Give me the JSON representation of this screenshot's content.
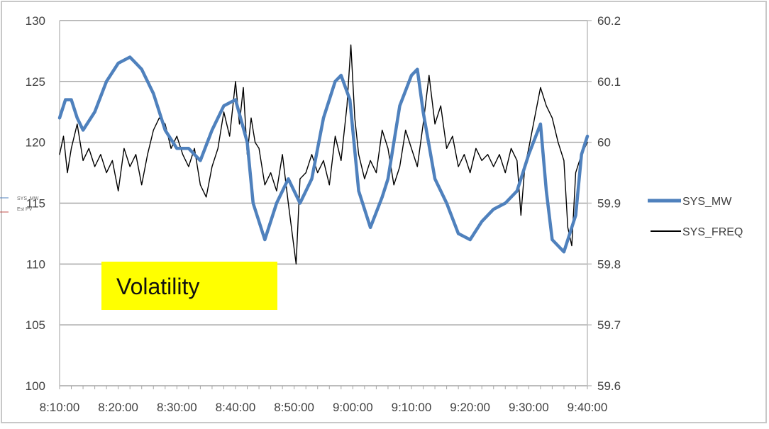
{
  "chart_data": {
    "type": "line",
    "title": "",
    "xlabel": "",
    "ylabel": "",
    "x_axis": {
      "min": "8:10:00",
      "max": "9:40:00",
      "tick_labels": [
        "8:10:00",
        "8:20:00",
        "8:30:00",
        "8:40:00",
        "8:50:00",
        "9:00:00",
        "9:10:00",
        "9:20:00",
        "9:30:00",
        "9:40:00"
      ]
    },
    "y_left": {
      "min": 100,
      "max": 130,
      "step": 5,
      "tick_labels": [
        "100",
        "105",
        "110",
        "115",
        "120",
        "125",
        "130"
      ]
    },
    "y_right": {
      "min": 59.6,
      "max": 60.2,
      "step": 0.1,
      "tick_labels": [
        "59.6",
        "59.7",
        "59.8",
        "59.9",
        "60",
        "60.1",
        "60.2"
      ]
    },
    "grid": "horizontal",
    "legend_position": "right",
    "series": [
      {
        "name": "SYS_MW",
        "axis": "left",
        "color": "#4f81bd",
        "x": [
          "8:10:00",
          "8:11:00",
          "8:12:00",
          "8:13:00",
          "8:14:00",
          "8:16:00",
          "8:18:00",
          "8:20:00",
          "8:22:00",
          "8:23:00",
          "8:24:00",
          "8:26:00",
          "8:28:00",
          "8:30:00",
          "8:32:00",
          "8:34:00",
          "8:36:00",
          "8:38:00",
          "8:40:00",
          "8:42:00",
          "8:43:00",
          "8:45:00",
          "8:47:00",
          "8:49:00",
          "8:51:00",
          "8:53:00",
          "8:55:00",
          "8:57:00",
          "8:58:00",
          "8:59:30",
          "9:01:00",
          "9:03:00",
          "9:05:00",
          "9:06:00",
          "9:08:00",
          "9:10:00",
          "9:11:00",
          "9:12:00",
          "9:14:00",
          "9:16:00",
          "9:18:00",
          "9:20:00",
          "9:22:00",
          "9:24:00",
          "9:26:00",
          "9:28:00",
          "9:29:00",
          "9:30:00",
          "9:32:00",
          "9:33:00",
          "9:34:00",
          "9:36:00",
          "9:38:00",
          "9:39:00",
          "9:40:00"
        ],
        "values": [
          122,
          123.5,
          123.5,
          122,
          121,
          122.5,
          125,
          126.5,
          127,
          126.5,
          126,
          124,
          121,
          119.5,
          119.5,
          118.5,
          121,
          123,
          123.5,
          120,
          115,
          112,
          115,
          117,
          115,
          117,
          122,
          125,
          125.5,
          123.5,
          116,
          113,
          115.5,
          117,
          123,
          125.5,
          126,
          122.5,
          117,
          115,
          112.5,
          112,
          113.5,
          114.5,
          115,
          116,
          117.5,
          119,
          121.5,
          116,
          112,
          111,
          114,
          119,
          120.5
        ]
      },
      {
        "name": "SYS_FREQ",
        "axis": "right",
        "color": "#000000",
        "x": [
          "8:10:00",
          "8:10:40",
          "8:11:20",
          "8:12:00",
          "8:13:00",
          "8:14:00",
          "8:15:00",
          "8:16:00",
          "8:17:00",
          "8:18:00",
          "8:19:00",
          "8:20:00",
          "8:21:00",
          "8:22:00",
          "8:23:00",
          "8:24:00",
          "8:25:00",
          "8:26:00",
          "8:27:00",
          "8:28:00",
          "8:29:00",
          "8:30:00",
          "8:31:00",
          "8:32:00",
          "8:33:00",
          "8:34:00",
          "8:35:00",
          "8:36:00",
          "8:37:00",
          "8:38:00",
          "8:39:00",
          "8:40:00",
          "8:40:40",
          "8:41:20",
          "8:42:00",
          "8:42:40",
          "8:43:20",
          "8:44:00",
          "8:45:00",
          "8:46:00",
          "8:47:00",
          "8:48:00",
          "8:49:00",
          "8:49:40",
          "8:50:20",
          "8:51:00",
          "8:52:00",
          "8:53:00",
          "8:54:00",
          "8:55:00",
          "8:56:00",
          "8:57:00",
          "8:58:00",
          "8:59:00",
          "8:59:40",
          "9:00:20",
          "9:01:00",
          "9:02:00",
          "9:03:00",
          "9:04:00",
          "9:05:00",
          "9:06:00",
          "9:07:00",
          "9:08:00",
          "9:09:00",
          "9:10:00",
          "9:11:00",
          "9:12:00",
          "9:13:00",
          "9:14:00",
          "9:15:00",
          "9:16:00",
          "9:17:00",
          "9:18:00",
          "9:19:00",
          "9:20:00",
          "9:21:00",
          "9:22:00",
          "9:23:00",
          "9:24:00",
          "9:25:00",
          "9:26:00",
          "9:27:00",
          "9:28:00",
          "9:28:40",
          "9:29:20",
          "9:30:00",
          "9:31:00",
          "9:32:00",
          "9:33:00",
          "9:34:00",
          "9:35:00",
          "9:36:00",
          "9:36:40",
          "9:37:20",
          "9:38:00",
          "9:39:00",
          "9:40:00"
        ],
        "values": [
          59.98,
          60.01,
          59.95,
          59.99,
          60.03,
          59.97,
          59.99,
          59.96,
          59.98,
          59.95,
          59.97,
          59.92,
          59.99,
          59.96,
          59.98,
          59.93,
          59.98,
          60.02,
          60.04,
          60.03,
          59.99,
          60.01,
          59.98,
          59.96,
          59.99,
          59.93,
          59.91,
          59.96,
          59.99,
          60.05,
          60.01,
          60.1,
          60.03,
          60.09,
          59.98,
          60.04,
          60,
          59.99,
          59.93,
          59.95,
          59.92,
          59.98,
          59.9,
          59.85,
          59.8,
          59.94,
          59.95,
          59.98,
          59.95,
          59.97,
          59.93,
          60.01,
          59.97,
          60.06,
          60.16,
          60.04,
          59.98,
          59.94,
          59.97,
          59.95,
          60.02,
          59.99,
          59.93,
          59.96,
          60.02,
          59.99,
          59.96,
          60.03,
          60.11,
          60.03,
          60.06,
          59.99,
          60.01,
          59.96,
          59.98,
          59.95,
          59.99,
          59.97,
          59.98,
          59.96,
          59.98,
          59.95,
          59.99,
          59.97,
          59.88,
          59.96,
          59.99,
          60.04,
          60.09,
          60.06,
          60.04,
          60,
          59.97,
          59.86,
          59.83,
          59.95,
          59.98,
          60
        ]
      }
    ],
    "annotations": [
      {
        "text": "Volatility",
        "background": "#ffff00"
      }
    ]
  },
  "mini_legend": {
    "line1": "SYS_MW",
    "line2": "Est PV"
  }
}
